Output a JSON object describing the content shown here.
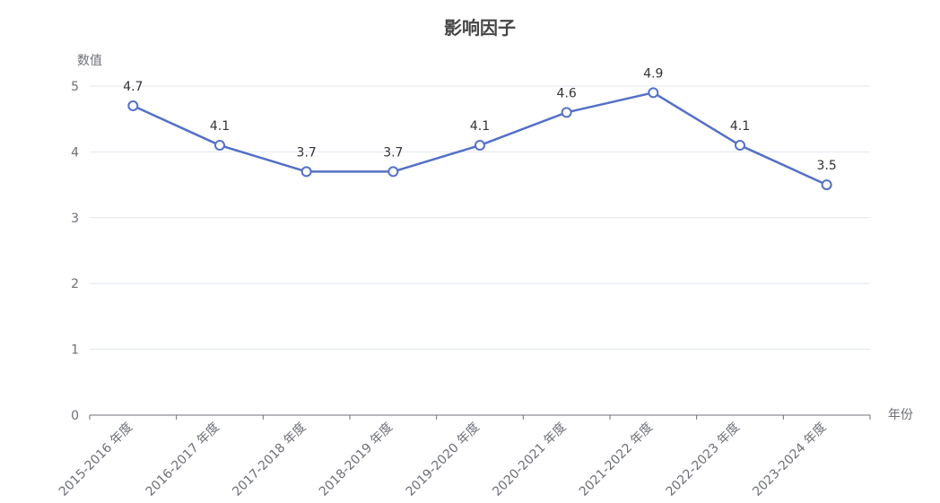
{
  "chart_data": {
    "type": "line",
    "title": "影响因子",
    "xlabel": "年份",
    "ylabel": "数值",
    "categories": [
      "2015-2016 年度",
      "2016-2017 年度",
      "2017-2018 年度",
      "2018-2019 年度",
      "2019-2020 年度",
      "2020-2021 年度",
      "2021-2022 年度",
      "2022-2023 年度",
      "2023-2024 年度"
    ],
    "series": [
      {
        "values": [
          4.7,
          4.1,
          3.7,
          3.7,
          4.1,
          4.6,
          4.9,
          4.1,
          3.5
        ],
        "color": "#5470c6"
      }
    ],
    "ylim": [
      0,
      5
    ],
    "yticks": [
      0,
      1,
      2,
      3,
      4,
      5
    ],
    "grid": true,
    "legend": "none",
    "data_labels": true
  }
}
